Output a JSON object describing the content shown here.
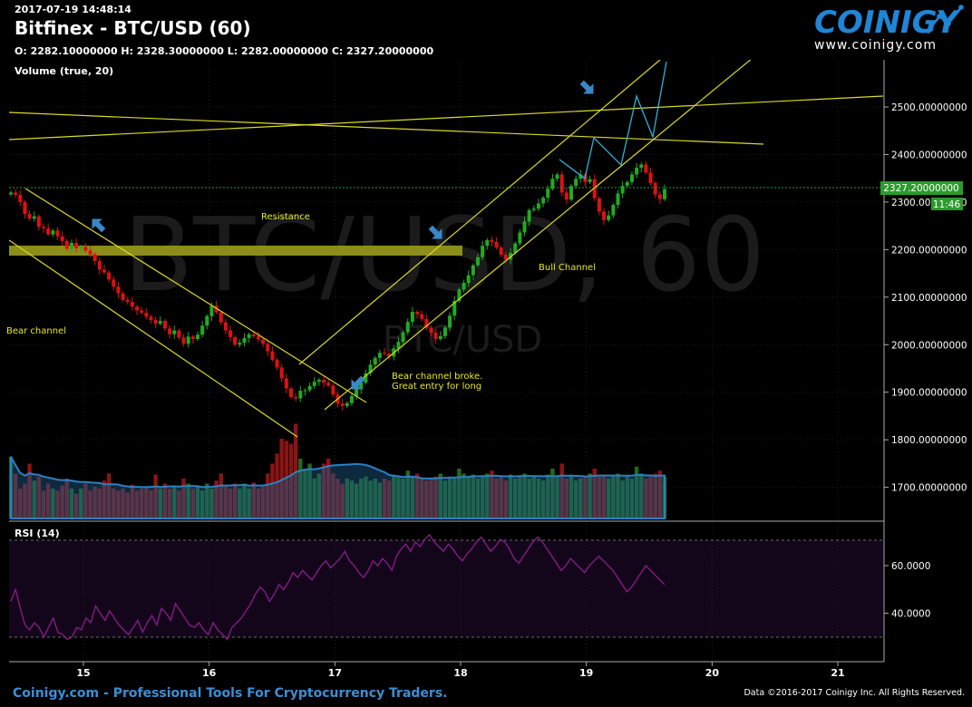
{
  "header": {
    "timestamp": "2017-07-19 14:48:14",
    "title": "Bitfinex - BTC/USD (60)",
    "ohlc": "O: 2282.10000000 H: 2328.30000000 L: 2282.00000000 C: 2327.20000000",
    "volume_label": "Volume (true, 20)",
    "rsi_label": "RSI (14)"
  },
  "logo": {
    "brand": "COINIGY",
    "url": "www.coinigy.com"
  },
  "watermark": {
    "big": "BTC/USD, 60",
    "small": "BTC/USD"
  },
  "footer": {
    "tagline": "Coinigy.com - Professional Tools For Cryptocurrency Traders.",
    "copyright": "Data ©2016-2017 Coinigy Inc. All Rights Reserved."
  },
  "annotations": {
    "bear_channel": "Bear channel",
    "resistance": "Resistance",
    "bull_channel": "Bull Channel",
    "broke_line1": "Bear channel broke.",
    "broke_line2": "Great entry for long"
  },
  "price_badge": {
    "price": "2327.20000000",
    "timer": "11:46"
  },
  "colors": {
    "up": "#22aa22",
    "down": "#dd1111",
    "trend": "#d9d92a",
    "resistance_band": "#8d8d1c",
    "projection": "#2bb3d8",
    "rsi_line": "#8a1c8a",
    "rsi_bg": "#14061a",
    "badge": "#2d9a2d",
    "arrow": "#3a87c8"
  },
  "chart_data": [
    {
      "type": "candlestick",
      "title": "Bitfinex - BTC/USD (60)",
      "x_ticks": [
        "15",
        "16",
        "17",
        "18",
        "19",
        "20",
        "21"
      ],
      "y_ticks": [
        "2500.00000000",
        "2400.00000000",
        "2300.00000000",
        "2200.00000000",
        "2100.00000000",
        "2000.00000000",
        "1900.00000000",
        "1800.00000000",
        "1700.00000000"
      ],
      "ylim": [
        1630,
        2580
      ],
      "xlim": [
        14.4,
        21.4
      ],
      "last_close": 2327.2,
      "close": [
        2320,
        2315,
        2300,
        2275,
        2265,
        2270,
        2248,
        2245,
        2232,
        2240,
        2228,
        2218,
        2202,
        2214,
        2203,
        2206,
        2198,
        2190,
        2176,
        2158,
        2152,
        2137,
        2122,
        2108,
        2094,
        2090,
        2080,
        2072,
        2067,
        2059,
        2052,
        2044,
        2050,
        2034,
        2022,
        2030,
        2015,
        2002,
        2017,
        2012,
        2021,
        2040,
        2060,
        2082,
        2068,
        2047,
        2030,
        2016,
        2000,
        2004,
        2014,
        2022,
        2018,
        2011,
        2002,
        1986,
        1968,
        1952,
        1929,
        1908,
        1890,
        1887,
        1903,
        1904,
        1913,
        1922,
        1926,
        1920,
        1914,
        1895,
        1876,
        1871,
        1877,
        1892,
        1906,
        1920,
        1940,
        1958,
        1972,
        1983,
        1981,
        1975,
        1992,
        2006,
        2026,
        2048,
        2069,
        2064,
        2054,
        2036,
        2025,
        2012,
        2018,
        2036,
        2061,
        2092,
        2116,
        2130,
        2146,
        2167,
        2184,
        2208,
        2220,
        2216,
        2204,
        2189,
        2179,
        2193,
        2213,
        2236,
        2259,
        2283,
        2286,
        2297,
        2309,
        2328,
        2349,
        2358,
        2320,
        2305,
        2334,
        2349,
        2358,
        2342,
        2348,
        2308,
        2280,
        2262,
        2272,
        2294,
        2318,
        2334,
        2342,
        2358,
        2372,
        2379,
        2362,
        2340,
        2316,
        2306,
        2327
      ],
      "volume_relative": [
        0.62,
        0.45,
        0.3,
        0.35,
        0.55,
        0.38,
        0.42,
        0.28,
        0.35,
        0.3,
        0.28,
        0.33,
        0.4,
        0.3,
        0.25,
        0.3,
        0.35,
        0.28,
        0.32,
        0.3,
        0.38,
        0.45,
        0.3,
        0.28,
        0.3,
        0.26,
        0.34,
        0.28,
        0.3,
        0.32,
        0.28,
        0.44,
        0.3,
        0.35,
        0.3,
        0.32,
        0.28,
        0.4,
        0.35,
        0.3,
        0.32,
        0.28,
        0.35,
        0.3,
        0.38,
        0.45,
        0.32,
        0.3,
        0.35,
        0.3,
        0.35,
        0.3,
        0.36,
        0.3,
        0.32,
        0.45,
        0.55,
        0.65,
        0.8,
        0.78,
        0.75,
        0.95,
        0.6,
        0.5,
        0.55,
        0.4,
        0.45,
        0.55,
        0.6,
        0.45,
        0.4,
        0.35,
        0.4,
        0.38,
        0.35,
        0.4,
        0.42,
        0.38,
        0.4,
        0.36,
        0.4,
        0.38,
        0.44,
        0.42,
        0.4,
        0.48,
        0.42,
        0.45,
        0.4,
        0.38,
        0.4,
        0.42,
        0.45,
        0.38,
        0.42,
        0.4,
        0.5,
        0.45,
        0.42,
        0.44,
        0.4,
        0.42,
        0.45,
        0.48,
        0.4,
        0.42,
        0.38,
        0.44,
        0.4,
        0.42,
        0.45,
        0.4,
        0.42,
        0.4,
        0.38,
        0.44,
        0.5,
        0.42,
        0.55,
        0.4,
        0.42,
        0.38,
        0.4,
        0.42,
        0.45,
        0.5,
        0.42,
        0.44,
        0.4,
        0.42,
        0.45,
        0.38,
        0.42,
        0.4,
        0.52,
        0.45,
        0.4,
        0.42,
        0.45,
        0.48,
        0.42
      ]
    },
    {
      "type": "line",
      "title": "RSI (14)",
      "y_ticks": [
        "60.0000",
        "40.0000"
      ],
      "ylim": [
        25,
        80
      ],
      "overbought": 70,
      "oversold": 30,
      "values": [
        45,
        50,
        42,
        35,
        33,
        36,
        34,
        30,
        34,
        38,
        32,
        31,
        29,
        30,
        34,
        33,
        38,
        36,
        43,
        40,
        37,
        41,
        38,
        35,
        33,
        31,
        34,
        37,
        32,
        36,
        39,
        35,
        42,
        40,
        37,
        44,
        41,
        38,
        35,
        34,
        36,
        33,
        31,
        36,
        33,
        31,
        29,
        34,
        36,
        38,
        41,
        44,
        48,
        51,
        49,
        45,
        48,
        52,
        50,
        53,
        57,
        55,
        58,
        56,
        54,
        57,
        60,
        62,
        59,
        61,
        63,
        66,
        62,
        60,
        57,
        55,
        58,
        62,
        60,
        63,
        61,
        58,
        64,
        67,
        69,
        66,
        70,
        68,
        71,
        73,
        70,
        68,
        66,
        69,
        67,
        64,
        62,
        65,
        67,
        70,
        72,
        69,
        66,
        68,
        71,
        70,
        67,
        63,
        61,
        64,
        67,
        70,
        72,
        70,
        67,
        64,
        61,
        58,
        60,
        63,
        61,
        59,
        57,
        60,
        62,
        64,
        62,
        60,
        58,
        55,
        52,
        49,
        51,
        54,
        57,
        60,
        58,
        56,
        54,
        52
      ]
    }
  ]
}
